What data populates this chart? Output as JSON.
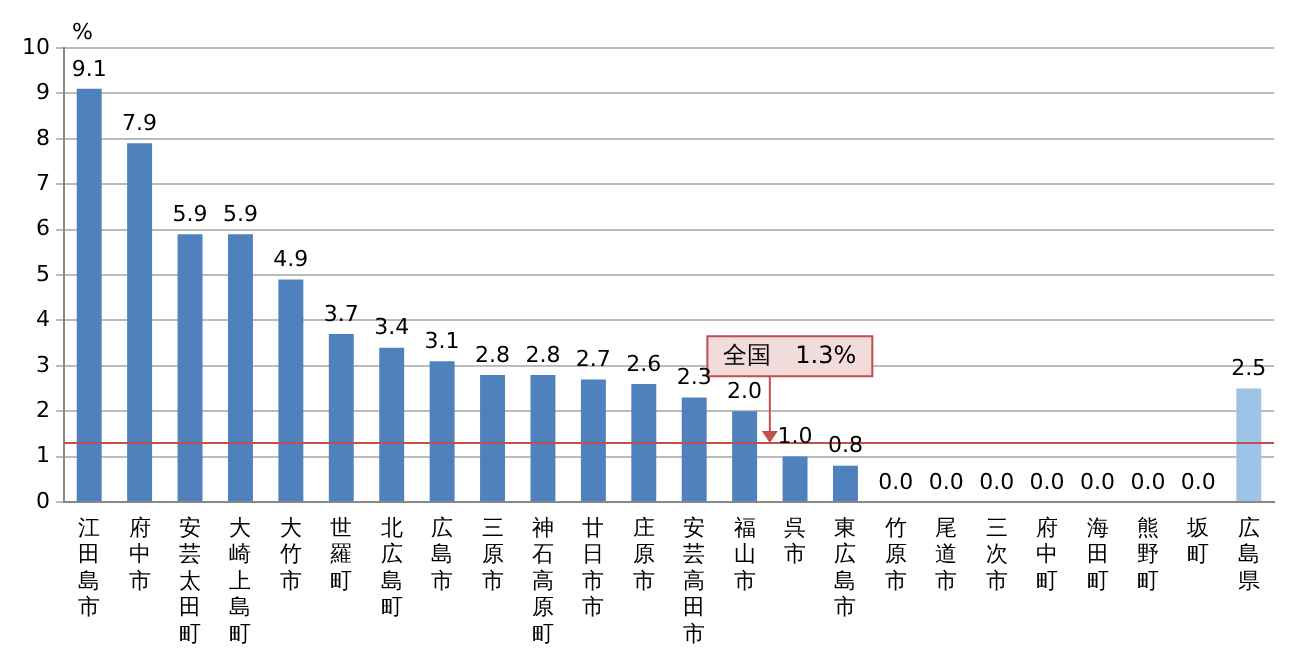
{
  "chart_data": {
    "type": "bar",
    "ylabel": "%",
    "categories": [
      "江田島市",
      "府中市",
      "安芸太田町",
      "大崎上島町",
      "大竹市",
      "世羅町",
      "北広島町",
      "広島市",
      "三原市",
      "神石高原町",
      "廿日市市",
      "庄原市",
      "安芸高田市",
      "福山市",
      "呉市",
      "東広島市",
      "竹原市",
      "尾道市",
      "三次市",
      "府中町",
      "海田町",
      "熊野町",
      "坂町",
      "広島県"
    ],
    "values": [
      9.1,
      7.9,
      5.9,
      5.9,
      4.9,
      3.7,
      3.4,
      3.1,
      2.8,
      2.8,
      2.7,
      2.6,
      2.3,
      2.0,
      1.0,
      0.8,
      0,
      0,
      0,
      0,
      0,
      0,
      0,
      2.5
    ],
    "value_labels": [
      "9.1",
      "7.9",
      "5.9",
      "5.9",
      "4.9",
      "3.7",
      "3.4",
      "3.1",
      "2.8",
      "2.8",
      "2.7",
      "2.6",
      "2.3",
      "2.0",
      "1.0",
      "0.8",
      "0.0",
      "0.0",
      "0.0",
      "0.0",
      "0.0",
      "0.0",
      "0.0",
      "2.5"
    ],
    "colors": [
      "#4f81bd",
      "#4f81bd",
      "#4f81bd",
      "#4f81bd",
      "#4f81bd",
      "#4f81bd",
      "#4f81bd",
      "#4f81bd",
      "#4f81bd",
      "#4f81bd",
      "#4f81bd",
      "#4f81bd",
      "#4f81bd",
      "#4f81bd",
      "#4f81bd",
      "#4f81bd",
      "#4f81bd",
      "#4f81bd",
      "#4f81bd",
      "#4f81bd",
      "#4f81bd",
      "#4f81bd",
      "#4f81bd",
      "#9dc3e6"
    ],
    "ylim": [
      0,
      10
    ],
    "yticks": [
      0,
      1,
      2,
      3,
      4,
      5,
      6,
      7,
      8,
      9,
      10
    ],
    "grid": "y",
    "legend": false,
    "ref_lines": [
      {
        "axis": "y",
        "value": 1.3,
        "label": "全国　1.3%",
        "color": "#c0504d"
      }
    ]
  }
}
